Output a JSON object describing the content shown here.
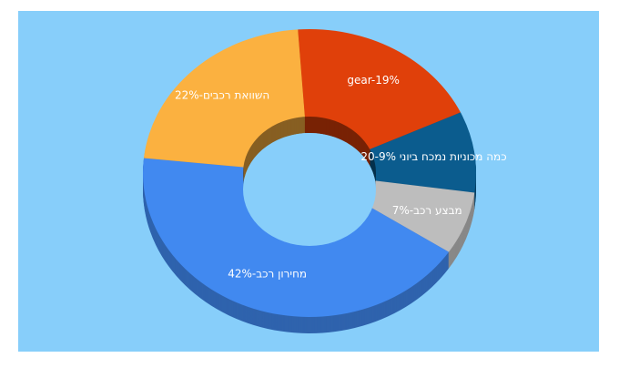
{
  "chart_data": {
    "type": "donut3d",
    "values": [
      19,
      9,
      7,
      42,
      22
    ],
    "value_labels": [
      "gear-19%",
      "כמה מכוניות נמכח ביוני 20-9%",
      "מבצע רכב-7%",
      "מחירון רכב-42%",
      "השוואת רכבים-22%"
    ],
    "colors": [
      "#e0400a",
      "#0b5c8e",
      "#bdbdbd",
      "#4189f0",
      "#fbb140"
    ]
  }
}
